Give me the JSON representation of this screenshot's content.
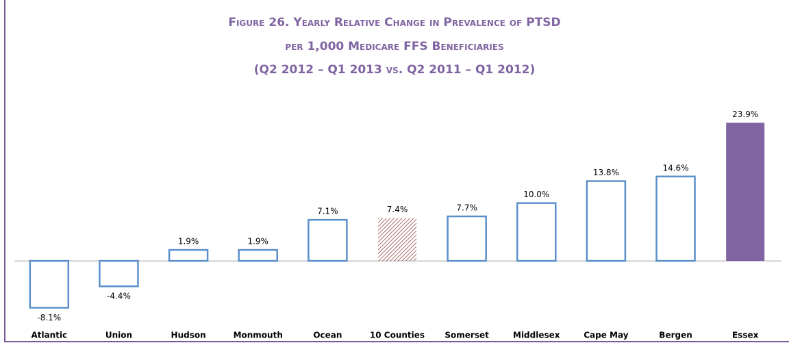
{
  "chart_data": {
    "type": "bar",
    "title": [
      "Figure 26. Yearly Relative Change in Prevalence of PTSD",
      "per 1,000 Medicare FFS Beneficiaries",
      "(Q2 2012 – Q1 2013 vs. Q2 2011 – Q1 2012)"
    ],
    "categories": [
      "Atlantic",
      "Union",
      "Hudson",
      "Monmouth",
      "Ocean",
      "10 Counties",
      "Somerset",
      "Middlesex",
      "Cape May",
      "Bergen",
      "Essex"
    ],
    "values": [
      -8.1,
      -4.4,
      1.9,
      1.9,
      7.1,
      7.4,
      7.7,
      10.0,
      13.8,
      14.6,
      23.9
    ],
    "value_labels": [
      "-8.1%",
      "-4.4%",
      "1.9%",
      "1.9%",
      "7.1%",
      "7.4%",
      "7.7%",
      "10.0%",
      "13.8%",
      "14.6%",
      "23.9%"
    ],
    "colors": [
      "#5b8fcb",
      "#5b8fcb",
      "#5b8fcb",
      "#5b8fcb",
      "#5b8fcb",
      "#8b3a3a",
      "#5b8fcb",
      "#5b8fcb",
      "#5b8fcb",
      "#5b8fcb",
      "#8064a2"
    ],
    "styles": [
      "outline",
      "outline",
      "outline",
      "outline",
      "outline",
      "hatch",
      "outline",
      "outline",
      "outline",
      "outline",
      "fill"
    ],
    "ylim": [
      -10,
      25
    ]
  }
}
